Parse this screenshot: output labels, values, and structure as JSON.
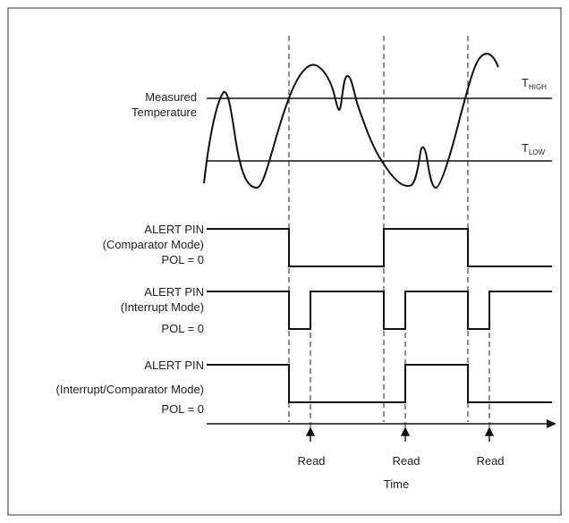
{
  "temperature": {
    "label_line1": "Measured",
    "label_line2": "Temperature",
    "t_high": {
      "main": "T",
      "sub": "HIGH"
    },
    "t_low": {
      "main": "T",
      "sub": "LOW"
    }
  },
  "alerts": [
    {
      "line1": "ALERT PIN",
      "line2": "(Comparator Mode)",
      "line3": "POL = 0"
    },
    {
      "line1": "ALERT PIN",
      "line2": "(Interrupt Mode)",
      "line3": "POL = 0"
    },
    {
      "line1": "ALERT PIN",
      "line2": "(Interrupt/Comparator Mode)",
      "line3": "POL = 0"
    }
  ],
  "axis": {
    "read_labels": [
      "Read",
      "Read",
      "Read"
    ],
    "time_label": "Time"
  },
  "colors": {
    "line": "#111111",
    "frame": "#555555"
  }
}
